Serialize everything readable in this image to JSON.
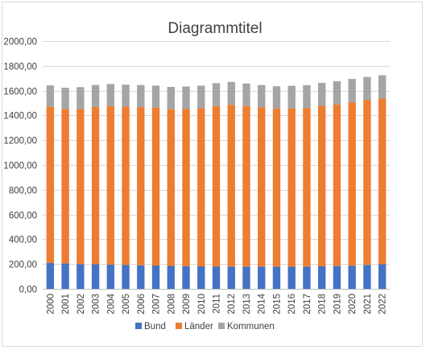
{
  "chart_data": {
    "type": "bar",
    "stacked": true,
    "title": "Diagrammtitel",
    "xlabel": "",
    "ylabel": "",
    "ylim": [
      0,
      2000
    ],
    "ytick_step": 200,
    "ytick_labels": [
      "0,00",
      "200,00",
      "400,00",
      "600,00",
      "800,00",
      "1000,00",
      "1200,00",
      "1400,00",
      "1600,00",
      "1800,00",
      "2000,00"
    ],
    "grid": true,
    "legend_position": "bottom",
    "categories": [
      "2000",
      "2001",
      "2002",
      "2003",
      "2004",
      "2005",
      "2006",
      "2007",
      "2008",
      "2009",
      "2010",
      "2011",
      "2012",
      "2013",
      "2014",
      "2015",
      "2016",
      "2017",
      "2018",
      "2019",
      "2020",
      "2021",
      "2022"
    ],
    "series": [
      {
        "name": "Bund",
        "color": "#4472c4",
        "values": [
          210,
          205,
          200,
          198,
          195,
          193,
          190,
          188,
          185,
          183,
          182,
          181,
          180,
          180,
          180,
          179,
          179,
          180,
          182,
          184,
          187,
          193,
          198
        ]
      },
      {
        "name": "Länder",
        "color": "#ed7d31",
        "values": [
          1260,
          1245,
          1252,
          1270,
          1280,
          1278,
          1277,
          1275,
          1265,
          1268,
          1275,
          1294,
          1305,
          1295,
          1285,
          1275,
          1277,
          1280,
          1295,
          1305,
          1318,
          1330,
          1338
        ]
      },
      {
        "name": "Kommunen",
        "color": "#a5a5a5",
        "values": [
          172,
          173,
          176,
          177,
          178,
          177,
          178,
          177,
          180,
          182,
          183,
          185,
          185,
          182,
          180,
          181,
          183,
          184,
          185,
          187,
          189,
          187,
          188
        ]
      }
    ]
  }
}
